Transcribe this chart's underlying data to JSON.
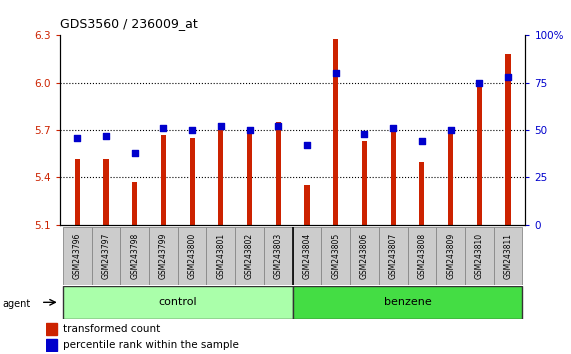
{
  "title": "GDS3560 / 236009_at",
  "samples": [
    "GSM243796",
    "GSM243797",
    "GSM243798",
    "GSM243799",
    "GSM243800",
    "GSM243801",
    "GSM243802",
    "GSM243803",
    "GSM243804",
    "GSM243805",
    "GSM243806",
    "GSM243807",
    "GSM243808",
    "GSM243809",
    "GSM243810",
    "GSM243811"
  ],
  "bar_values": [
    5.52,
    5.52,
    5.37,
    5.67,
    5.65,
    5.73,
    5.7,
    5.75,
    5.35,
    6.28,
    5.63,
    5.7,
    5.5,
    5.7,
    6.02,
    6.18
  ],
  "percentile_values": [
    46,
    47,
    38,
    51,
    50,
    52,
    50,
    52,
    42,
    80,
    48,
    51,
    44,
    50,
    75,
    78
  ],
  "groups": [
    {
      "label": "control",
      "start": 0,
      "end": 8,
      "color": "#AAFFAA"
    },
    {
      "label": "benzene",
      "start": 8,
      "end": 16,
      "color": "#44DD44"
    }
  ],
  "bar_color": "#CC2200",
  "dot_color": "#0000CC",
  "ylim_left": [
    5.1,
    6.3
  ],
  "yticks_left": [
    5.1,
    5.4,
    5.7,
    6.0,
    6.3
  ],
  "ylim_right": [
    0,
    100
  ],
  "yticks_right": [
    0,
    25,
    50,
    75,
    100
  ],
  "yticklabels_right": [
    "0",
    "25",
    "50",
    "75",
    "100%"
  ],
  "bar_width": 0.18,
  "tick_color_left": "#CC2200",
  "tick_color_right": "#0000CC",
  "label_box_color": "#CCCCCC",
  "n_control": 8,
  "n_total": 16
}
